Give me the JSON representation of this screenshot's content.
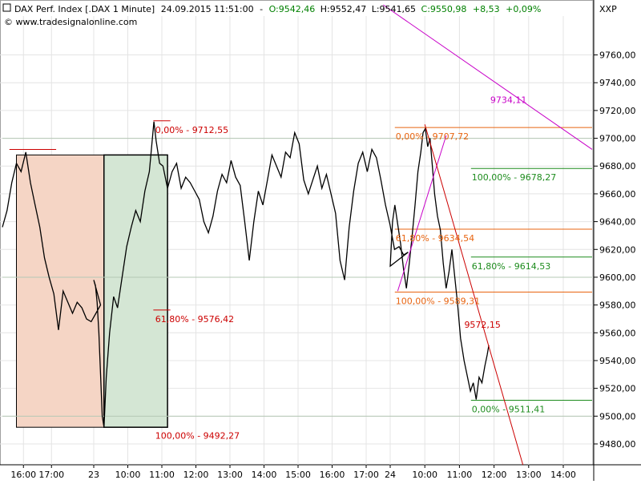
{
  "header": {
    "symbol_label": "DAX Perf. Index [.DAX  1 Minute]",
    "datetime": "24.09.2015 11:51:00",
    "separator": "-",
    "open_label": "O:9542,46",
    "high_label": "H:9552,47",
    "low_label": "L:9541,65",
    "close_label": "C:9550,98",
    "change_label": "+8,53",
    "change_pct_label": "+0,09%",
    "source_label": "© www.tradesignalonline.com",
    "scale_label": "XXP",
    "colors": {
      "open": "#008000",
      "close": "#008000",
      "neutral": "#000000"
    }
  },
  "chart_data": {
    "type": "line",
    "title": "DAX Perf. Index [.DAX  1 Minute]",
    "y_axis": {
      "range": [
        9465,
        9788
      ],
      "ticks": [
        9480,
        9500,
        9520,
        9540,
        9560,
        9580,
        9600,
        9620,
        9640,
        9660,
        9680,
        9700,
        9720,
        9740,
        9760
      ],
      "tick_labels": [
        "9480,00",
        "9500,00",
        "9520,00",
        "9540,00",
        "9560,00",
        "9580,00",
        "9600,00",
        "9620,00",
        "9640,00",
        "9660,00",
        "9680,00",
        "9700,00",
        "9720,00",
        "9740,00",
        "9760,00"
      ],
      "position": "right"
    },
    "x_axis": {
      "tick_labels": [
        "16:00",
        "17:00",
        "23",
        "10:00",
        "11:00",
        "12:00",
        "13:00",
        "14:00",
        "15:00",
        "16:00",
        "17:00",
        "24",
        "10:00",
        "11:00",
        "12:00",
        "13:00",
        "14:00"
      ],
      "tick_times": [
        "2015-09-22 16:00",
        "2015-09-22 17:00",
        "2015-09-23 09:00",
        "2015-09-23 10:00",
        "2015-09-23 11:00",
        "2015-09-23 12:00",
        "2015-09-23 13:00",
        "2015-09-23 14:00",
        "2015-09-23 15:00",
        "2015-09-23 16:00",
        "2015-09-23 17:00",
        "2015-09-24 09:00",
        "2015-09-24 10:00",
        "2015-09-24 11:00",
        "2015-09-24 12:00",
        "2015-09-24 13:00",
        "2015-09-24 14:00"
      ]
    },
    "grid": true,
    "series": [
      {
        "color": "#000000",
        "points": [
          [
            "2015-09-22 15:15",
            9636
          ],
          [
            "2015-09-22 15:25",
            9648
          ],
          [
            "2015-09-22 15:35",
            9668
          ],
          [
            "2015-09-22 15:45",
            9682
          ],
          [
            "2015-09-22 15:55",
            9676
          ],
          [
            "2015-09-22 16:05",
            9690
          ],
          [
            "2015-09-22 16:15",
            9668
          ],
          [
            "2015-09-22 16:25",
            9652
          ],
          [
            "2015-09-22 16:35",
            9636
          ],
          [
            "2015-09-22 16:45",
            9614
          ],
          [
            "2015-09-22 16:55",
            9600
          ],
          [
            "2015-09-22 17:05",
            9588
          ],
          [
            "2015-09-22 17:15",
            9562
          ],
          [
            "2015-09-22 17:25",
            9590
          ],
          [
            "2015-09-22 17:35",
            9582
          ],
          [
            "2015-09-22 17:45",
            9574
          ],
          [
            "2015-09-22 17:55",
            9582
          ],
          [
            "2015-09-22 18:05",
            9578
          ],
          [
            "2015-09-22 18:15",
            9570
          ],
          [
            "2015-09-22 18:25",
            9568
          ],
          [
            "2015-09-22 18:35",
            9574
          ],
          [
            "2015-09-22 18:45",
            9580
          ],
          [
            "2015-09-23 09:00",
            9598
          ],
          [
            "2015-09-23 09:03",
            9594
          ],
          [
            "2015-09-23 09:06",
            9582
          ],
          [
            "2015-09-23 09:09",
            9560
          ],
          [
            "2015-09-23 09:12",
            9530
          ],
          [
            "2015-09-23 09:15",
            9500
          ],
          [
            "2015-09-23 09:18",
            9492
          ],
          [
            "2015-09-23 09:22",
            9528
          ],
          [
            "2015-09-23 09:28",
            9560
          ],
          [
            "2015-09-23 09:35",
            9586
          ],
          [
            "2015-09-23 09:42",
            9578
          ],
          [
            "2015-09-23 09:50",
            9600
          ],
          [
            "2015-09-23 09:58",
            9622
          ],
          [
            "2015-09-23 10:06",
            9636
          ],
          [
            "2015-09-23 10:14",
            9648
          ],
          [
            "2015-09-23 10:22",
            9640
          ],
          [
            "2015-09-23 10:30",
            9662
          ],
          [
            "2015-09-23 10:38",
            9676
          ],
          [
            "2015-09-23 10:46",
            9712
          ],
          [
            "2015-09-23 10:50",
            9698
          ],
          [
            "2015-09-23 10:56",
            9682
          ],
          [
            "2015-09-23 11:02",
            9680
          ],
          [
            "2015-09-23 11:10",
            9664
          ],
          [
            "2015-09-23 11:18",
            9676
          ],
          [
            "2015-09-23 11:26",
            9682
          ],
          [
            "2015-09-23 11:34",
            9664
          ],
          [
            "2015-09-23 11:42",
            9672
          ],
          [
            "2015-09-23 11:50",
            9668
          ],
          [
            "2015-09-23 11:58",
            9662
          ],
          [
            "2015-09-23 12:06",
            9656
          ],
          [
            "2015-09-23 12:14",
            9640
          ],
          [
            "2015-09-23 12:22",
            9632
          ],
          [
            "2015-09-23 12:30",
            9644
          ],
          [
            "2015-09-23 12:38",
            9662
          ],
          [
            "2015-09-23 12:46",
            9674
          ],
          [
            "2015-09-23 12:54",
            9668
          ],
          [
            "2015-09-23 13:02",
            9684
          ],
          [
            "2015-09-23 13:10",
            9672
          ],
          [
            "2015-09-23 13:18",
            9666
          ],
          [
            "2015-09-23 13:26",
            9640
          ],
          [
            "2015-09-23 13:34",
            9612
          ],
          [
            "2015-09-23 13:42",
            9640
          ],
          [
            "2015-09-23 13:50",
            9662
          ],
          [
            "2015-09-23 13:58",
            9652
          ],
          [
            "2015-09-23 14:06",
            9670
          ],
          [
            "2015-09-23 14:14",
            9688
          ],
          [
            "2015-09-23 14:22",
            9680
          ],
          [
            "2015-09-23 14:30",
            9672
          ],
          [
            "2015-09-23 14:38",
            9690
          ],
          [
            "2015-09-23 14:46",
            9686
          ],
          [
            "2015-09-23 14:54",
            9704
          ],
          [
            "2015-09-23 15:02",
            9696
          ],
          [
            "2015-09-23 15:10",
            9670
          ],
          [
            "2015-09-23 15:18",
            9660
          ],
          [
            "2015-09-23 15:26",
            9670
          ],
          [
            "2015-09-23 15:34",
            9680
          ],
          [
            "2015-09-23 15:42",
            9664
          ],
          [
            "2015-09-23 15:50",
            9674
          ],
          [
            "2015-09-23 15:58",
            9660
          ],
          [
            "2015-09-23 16:06",
            9646
          ],
          [
            "2015-09-23 16:14",
            9612
          ],
          [
            "2015-09-23 16:22",
            9598
          ],
          [
            "2015-09-23 16:30",
            9636
          ],
          [
            "2015-09-23 16:38",
            9662
          ],
          [
            "2015-09-23 16:46",
            9682
          ],
          [
            "2015-09-23 16:54",
            9690
          ],
          [
            "2015-09-23 17:02",
            9676
          ],
          [
            "2015-09-23 17:10",
            9692
          ],
          [
            "2015-09-23 17:18",
            9686
          ],
          [
            "2015-09-23 17:26",
            9670
          ],
          [
            "2015-09-23 17:34",
            9652
          ],
          [
            "2015-09-23 17:42",
            9638
          ],
          [
            "2015-09-23 17:50",
            9620
          ],
          [
            "2015-09-23 17:58",
            9622
          ],
          [
            "2015-09-23 18:06",
            9616
          ],
          [
            "2015-09-23 18:14",
            9618
          ],
          [
            "2015-09-24 09:00",
            9608
          ],
          [
            "2015-09-24 09:04",
            9640
          ],
          [
            "2015-09-24 09:08",
            9652
          ],
          [
            "2015-09-24 09:13",
            9638
          ],
          [
            "2015-09-24 09:18",
            9624
          ],
          [
            "2015-09-24 09:23",
            9606
          ],
          [
            "2015-09-24 09:28",
            9592
          ],
          [
            "2015-09-24 09:33",
            9610
          ],
          [
            "2015-09-24 09:38",
            9630
          ],
          [
            "2015-09-24 09:43",
            9652
          ],
          [
            "2015-09-24 09:48",
            9676
          ],
          [
            "2015-09-24 09:53",
            9690
          ],
          [
            "2015-09-24 09:57",
            9704
          ],
          [
            "2015-09-24 10:01",
            9707
          ],
          [
            "2015-09-24 10:05",
            9694
          ],
          [
            "2015-09-24 10:09",
            9700
          ],
          [
            "2015-09-24 10:13",
            9680
          ],
          [
            "2015-09-24 10:17",
            9660
          ],
          [
            "2015-09-24 10:22",
            9644
          ],
          [
            "2015-09-24 10:27",
            9634
          ],
          [
            "2015-09-24 10:32",
            9610
          ],
          [
            "2015-09-24 10:37",
            9592
          ],
          [
            "2015-09-24 10:42",
            9604
          ],
          [
            "2015-09-24 10:47",
            9620
          ],
          [
            "2015-09-24 10:52",
            9600
          ],
          [
            "2015-09-24 10:57",
            9580
          ],
          [
            "2015-09-24 11:02",
            9556
          ],
          [
            "2015-09-24 11:08",
            9540
          ],
          [
            "2015-09-24 11:14",
            9528
          ],
          [
            "2015-09-24 11:19",
            9518
          ],
          [
            "2015-09-24 11:24",
            9524
          ],
          [
            "2015-09-24 11:29",
            9512
          ],
          [
            "2015-09-24 11:34",
            9528
          ],
          [
            "2015-09-24 11:39",
            9524
          ],
          [
            "2015-09-24 11:44",
            9536
          ],
          [
            "2015-09-24 11:48",
            9544
          ],
          [
            "2015-09-24 11:51",
            9551
          ]
        ]
      }
    ],
    "annotations": {
      "labels": [
        {
          "text": "0,00% - 9712,55",
          "at": [
            "2015-09-23 10:47",
            9712.55
          ],
          "color": "#cc0000"
        },
        {
          "text": "61,80% - 9576,42",
          "at": [
            "2015-09-23 10:47",
            9576.42
          ],
          "color": "#cc0000"
        },
        {
          "text": "100,00% - 9492,27",
          "at": [
            "2015-09-23 10:47",
            9492.27
          ],
          "color": "#cc0000"
        },
        {
          "text": "0,00% - 9707,72",
          "at": [
            "2015-09-24 09:08",
            9707.72
          ],
          "color": "#e86410"
        },
        {
          "text": "61,80% - 9634,54",
          "at": [
            "2015-09-24 09:08",
            9634.54
          ],
          "color": "#e86410"
        },
        {
          "text": "100,00% - 9589,31",
          "at": [
            "2015-09-24 09:08",
            9589.31
          ],
          "color": "#e86410"
        },
        {
          "text": "100,00% - 9678,27",
          "at": [
            "2015-09-24 11:20",
            9678.27
          ],
          "color": "#1e8c1e"
        },
        {
          "text": "61,80% - 9614,53",
          "at": [
            "2015-09-24 11:20",
            9614.53
          ],
          "color": "#1e8c1e"
        },
        {
          "text": "0,00% - 9511,41",
          "at": [
            "2015-09-24 11:20",
            9511.41
          ],
          "color": "#1e8c1e"
        },
        {
          "text": "9734,11",
          "at": [
            "2015-09-24 11:52",
            9734.11
          ],
          "color": "#c800c8"
        },
        {
          "text": "9572,15",
          "at": [
            "2015-09-24 11:07",
            9572.15
          ],
          "color": "#cc0000"
        }
      ],
      "red_fib": {
        "color": "#cc0000",
        "levels": [
          {
            "value": 9712.55,
            "from": "2015-09-23 10:45",
            "to": "2015-09-23 11:15"
          },
          {
            "value": 9576.42,
            "from": "2015-09-23 10:45",
            "to": "2015-09-23 11:15"
          }
        ]
      },
      "orange_fib": {
        "color": "#e86410",
        "levels": [
          {
            "value": 9707.72,
            "from": "2015-09-24 09:08",
            "to": "2015-09-24 14:50"
          },
          {
            "value": 9634.54,
            "from": "2015-09-24 09:08",
            "to": "2015-09-24 14:50"
          },
          {
            "value": 9589.31,
            "from": "2015-09-24 09:08",
            "to": "2015-09-24 14:50"
          }
        ]
      },
      "green_fib": {
        "color": "#1e8c1e",
        "levels": [
          {
            "value": 9678.27,
            "from": "2015-09-24 11:20",
            "to": "2015-09-24 14:50"
          },
          {
            "value": 9614.53,
            "from": "2015-09-24 11:20",
            "to": "2015-09-24 14:50"
          },
          {
            "value": 9511.41,
            "from": "2015-09-24 11:20",
            "to": "2015-09-24 14:50"
          }
        ]
      },
      "gray_lines": [
        {
          "value": 9700,
          "from": "2015-09-22 15:15",
          "to": "2015-09-24 14:50"
        },
        {
          "value": 9600,
          "from": "2015-09-22 15:15",
          "to": "2015-09-24 14:50"
        },
        {
          "value": 9500,
          "from": "2015-09-22 15:15",
          "to": "2015-09-24 14:50"
        }
      ],
      "red_top_line": {
        "value": 9692,
        "from": "2015-09-22 15:30",
        "to": "2015-09-22 17:10",
        "color": "#cc0000"
      },
      "boxes": [
        {
          "from": "2015-09-22 15:45",
          "to": "2015-09-23 09:18",
          "top": 9688,
          "bottom": 9492,
          "fill": "#f5d5c5"
        },
        {
          "from": "2015-09-23 09:18",
          "to": "2015-09-23 11:10",
          "top": 9688,
          "bottom": 9492,
          "fill": "#d4e6d4"
        }
      ],
      "magenta_line": {
        "points": [
          [
            "2015-09-23 17:30",
            9796
          ],
          [
            "2015-09-24 14:50",
            9692
          ]
        ],
        "color": "#c800c8"
      },
      "magenta_swing": {
        "points": [
          [
            "2015-09-24 09:13",
            9590
          ],
          [
            "2015-09-24 10:37",
            9702
          ]
        ],
        "color": "#c800c8"
      },
      "red_trend": {
        "points": [
          [
            "2015-09-24 10:00",
            9710
          ],
          [
            "2015-09-24 12:50",
            9465
          ]
        ],
        "color": "#cc0000"
      }
    }
  }
}
